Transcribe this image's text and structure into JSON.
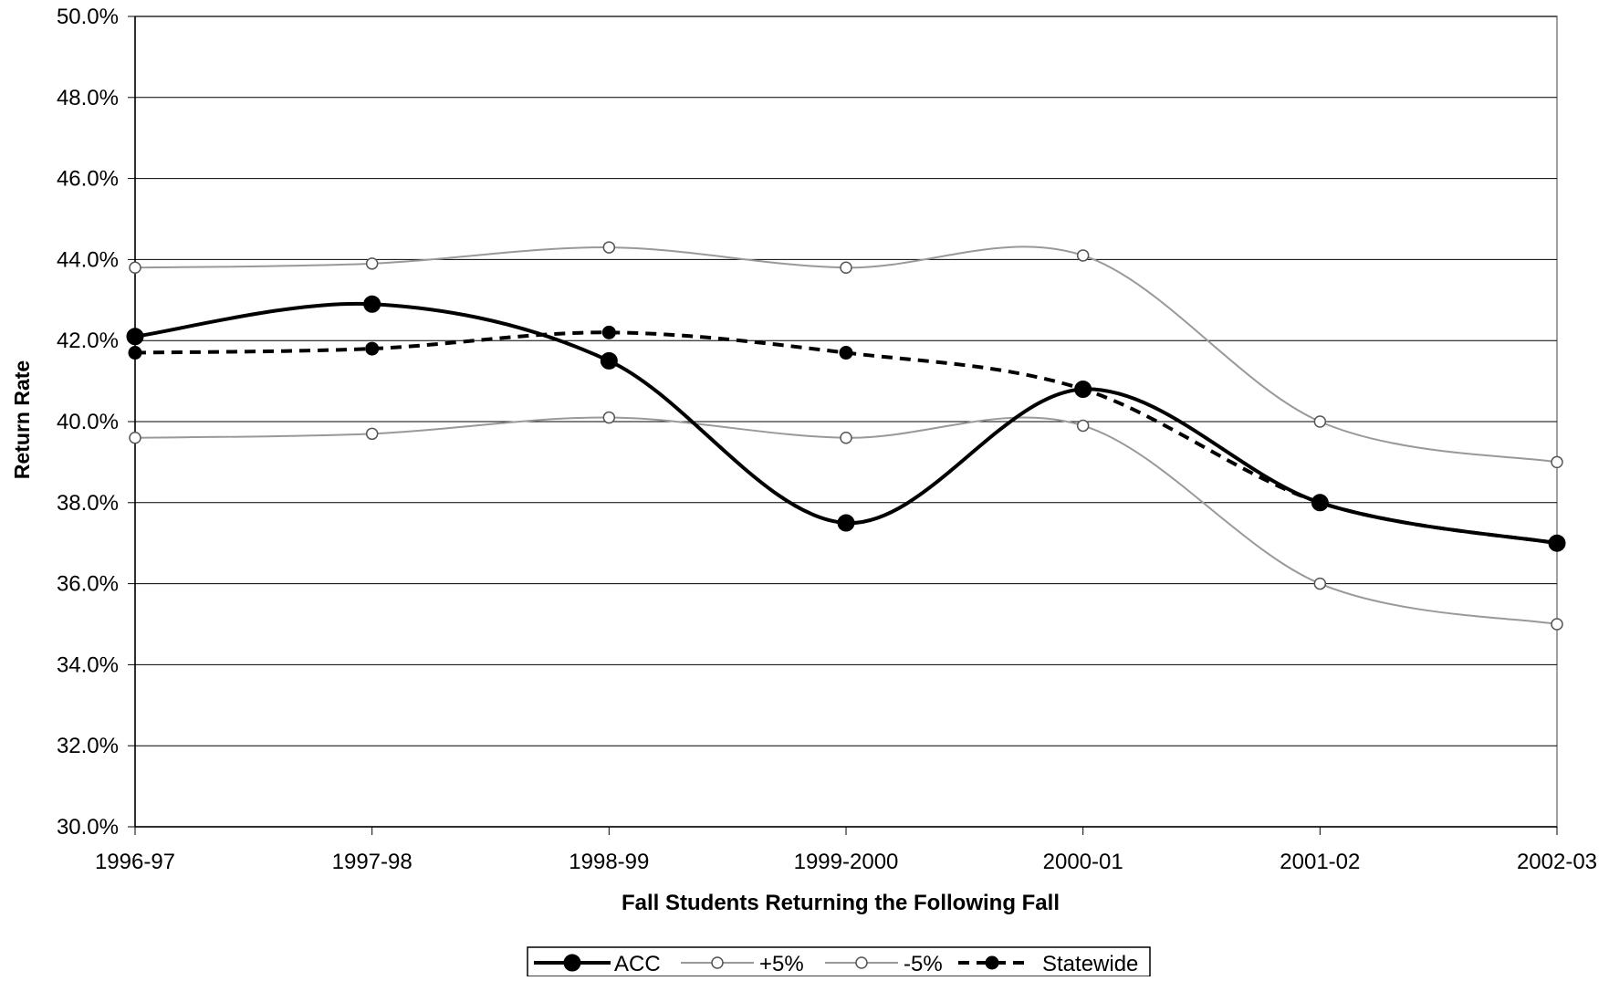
{
  "chart_data": {
    "type": "line",
    "categories": [
      "1996-97",
      "1997-98",
      "1998-99",
      "1999-2000",
      "2000-01",
      "2001-02",
      "2002-03"
    ],
    "series": [
      {
        "name": "ACC",
        "values": [
          42.1,
          42.9,
          41.5,
          37.5,
          40.8,
          38.0,
          37.0
        ],
        "color": "#000000",
        "style": "solid-bold",
        "marker": "filled-circle-large"
      },
      {
        "name": "+5%",
        "values": [
          43.8,
          43.9,
          44.3,
          43.8,
          44.1,
          40.0,
          39.0
        ],
        "color": "#999999",
        "style": "solid-thin",
        "marker": "open-circle"
      },
      {
        "name": "-5%",
        "values": [
          39.6,
          39.7,
          40.1,
          39.6,
          39.9,
          36.0,
          35.0
        ],
        "color": "#999999",
        "style": "solid-thin",
        "marker": "open-circle"
      },
      {
        "name": "Statewide",
        "values": [
          41.7,
          41.8,
          42.2,
          41.7,
          40.8,
          38.0,
          37.0
        ],
        "color": "#000000",
        "style": "dashed-bold",
        "marker": "filled-circle"
      }
    ],
    "yticks": [
      "30.0%",
      "32.0%",
      "34.0%",
      "36.0%",
      "38.0%",
      "40.0%",
      "42.0%",
      "44.0%",
      "46.0%",
      "48.0%",
      "50.0%"
    ],
    "ylim": [
      30,
      50
    ],
    "xlabel": "Fall Students Returning the Following Fall",
    "ylabel": "Return Rate",
    "grid": true,
    "legend_position": "bottom-center"
  }
}
